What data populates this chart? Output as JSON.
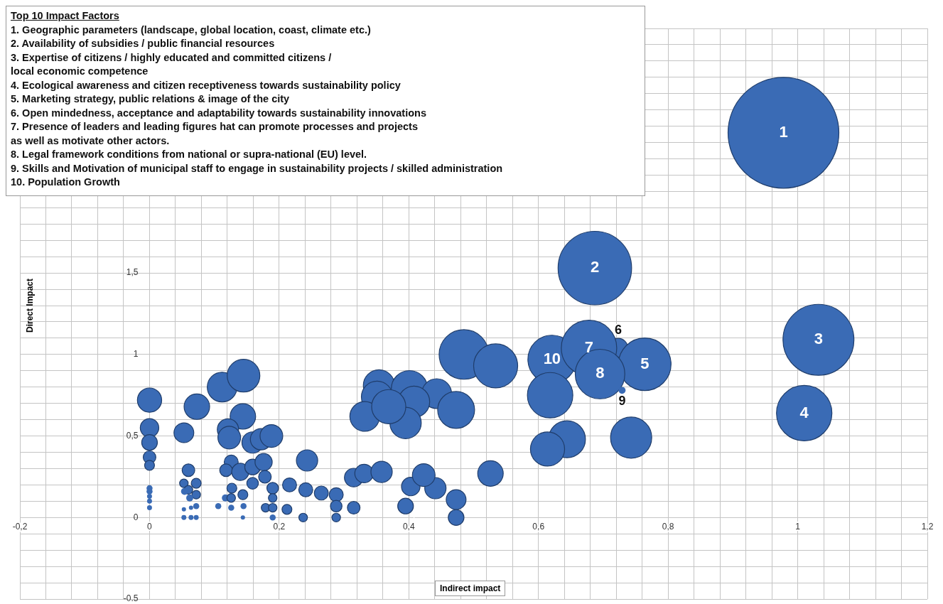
{
  "chart_data": {
    "type": "bubble",
    "title": "Top 10 Impact Factors",
    "xlabel": "Indirect impact",
    "ylabel": "Direct Impact",
    "color": "#3a6bb5",
    "grid": true,
    "xlim": [
      -0.2,
      1.2
    ],
    "ylim": [
      -0.5,
      3
    ],
    "xticks": [
      {
        "value": -0.2,
        "label": "-0,2"
      },
      {
        "value": -0.16,
        "label": null
      },
      {
        "value": -0.12,
        "label": null
      },
      {
        "value": -0.08,
        "label": null
      },
      {
        "value": -0.04,
        "label": null
      },
      0,
      {
        "value": 0.04,
        "label": null
      },
      {
        "value": 0.08,
        "label": null
      },
      {
        "value": 0.12,
        "label": null
      },
      {
        "value": 0.16,
        "label": null
      },
      {
        "value": 0.2,
        "label": "0,2"
      },
      {
        "value": 0.24,
        "label": null
      },
      {
        "value": 0.28,
        "label": null
      },
      {
        "value": 0.32,
        "label": null
      },
      {
        "value": 0.36,
        "label": null
      },
      {
        "value": 0.4,
        "label": "0,4"
      },
      {
        "value": 0.44,
        "label": null
      },
      {
        "value": 0.48,
        "label": null
      },
      {
        "value": 0.52,
        "label": null
      },
      {
        "value": 0.56,
        "label": null
      },
      {
        "value": 0.6,
        "label": "0,6"
      },
      {
        "value": 0.64,
        "label": null
      },
      {
        "value": 0.68,
        "label": null
      },
      {
        "value": 0.72,
        "label": null
      },
      {
        "value": 0.76,
        "label": null
      },
      {
        "value": 0.8,
        "label": "0,8"
      },
      {
        "value": 0.84,
        "label": null
      },
      {
        "value": 0.88,
        "label": null
      },
      {
        "value": 0.92,
        "label": null
      },
      {
        "value": 0.96,
        "label": null
      },
      1,
      {
        "value": 1.04,
        "label": null
      },
      {
        "value": 1.08,
        "label": null
      },
      {
        "value": 1.12,
        "label": null
      },
      {
        "value": 1.16,
        "label": null
      },
      {
        "value": 1.2,
        "label": "1,2"
      }
    ],
    "yticks": [
      {
        "value": -0.5,
        "label": "-0.5"
      },
      {
        "value": -0.4,
        "label": null
      },
      {
        "value": -0.3,
        "label": null
      },
      {
        "value": -0.2,
        "label": null
      },
      {
        "value": -0.1,
        "label": null
      },
      0,
      {
        "value": 0.1,
        "label": null
      },
      {
        "value": 0.2,
        "label": null
      },
      {
        "value": 0.3,
        "label": null
      },
      {
        "value": 0.4,
        "label": null
      },
      {
        "value": 0.5,
        "label": "0,5"
      },
      {
        "value": 0.6,
        "label": null
      },
      {
        "value": 0.7,
        "label": null
      },
      {
        "value": 0.8,
        "label": null
      },
      {
        "value": 0.9,
        "label": null
      },
      1,
      {
        "value": 1.1,
        "label": null
      },
      {
        "value": 1.2,
        "label": null
      },
      {
        "value": 1.3,
        "label": null
      },
      {
        "value": 1.4,
        "label": null
      },
      {
        "value": 1.5,
        "label": "1,5"
      },
      {
        "value": 1.6,
        "label": null
      },
      {
        "value": 1.7,
        "label": null
      },
      {
        "value": 1.8,
        "label": null
      },
      {
        "value": 1.9,
        "label": null
      },
      {
        "value": 2,
        "label": null
      },
      {
        "value": 2.1,
        "label": null
      },
      {
        "value": 2.2,
        "label": null
      },
      {
        "value": 2.3,
        "label": null
      },
      {
        "value": 2.4,
        "label": null
      },
      {
        "value": 2.5,
        "label": null
      },
      {
        "value": 2.6,
        "label": null
      },
      {
        "value": 2.7,
        "label": null
      },
      {
        "value": 2.8,
        "label": null
      },
      {
        "value": 2.9,
        "label": null
      },
      {
        "value": 3,
        "label": null
      }
    ],
    "x": [
      0.723,
      0.978,
      0.687,
      1.032,
      1.01,
      0.621,
      0.678,
      0.764,
      0.695,
      0.618,
      0.644,
      0.614,
      0.743,
      0.485,
      0.534,
      0.354,
      0.351,
      0.332,
      0.401,
      0.443,
      0.408,
      0.395,
      0.369,
      0.473,
      0.243,
      0.315,
      0.331,
      0.358,
      0.403,
      0.441,
      0.423,
      0.526,
      0.473,
      0.473,
      0.395,
      0.265,
      0.288,
      0.288,
      0.288,
      0.315,
      0,
      0,
      0,
      0,
      0,
      0,
      0,
      0,
      0,
      0,
      0.053,
      0.073,
      0.112,
      0.145,
      0.144,
      0.121,
      0.123,
      0.159,
      0.172,
      0.188,
      0.06,
      0.053,
      0.072,
      0.06,
      0.054,
      0.072,
      0.062,
      0.053,
      0.064,
      0.072,
      0.053,
      0.064,
      0.072,
      0.126,
      0.118,
      0.14,
      0.159,
      0.176,
      0.159,
      0.178,
      0.19,
      0.19,
      0.179,
      0.19,
      0.19,
      0.127,
      0.117,
      0.126,
      0.144,
      0.106,
      0.126,
      0.145,
      0.144,
      0.216,
      0.241,
      0.212,
      0.237,
      0.729
    ],
    "values": [
      1.04,
      2.36,
      1.53,
      1.09,
      0.64,
      0.97,
      1.04,
      0.94,
      0.88,
      0.75,
      0.48,
      0.42,
      0.49,
      1.0,
      0.93,
      0.81,
      0.74,
      0.62,
      0.79,
      0.76,
      0.71,
      0.58,
      0.68,
      0.66,
      0.35,
      0.245,
      0.27,
      0.28,
      0.19,
      0.18,
      0.26,
      0.27,
      0.11,
      0.0,
      0.07,
      0.15,
      0.14,
      0.07,
      0.0,
      0.06,
      0.72,
      0.55,
      0.46,
      0.37,
      0.32,
      0.18,
      0.16,
      0.13,
      0.1,
      0.06,
      0.52,
      0.68,
      0.8,
      0.87,
      0.62,
      0.54,
      0.49,
      0.46,
      0.48,
      0.5,
      0.29,
      0.21,
      0.21,
      0.17,
      0.16,
      0.14,
      0.12,
      0.05,
      0.06,
      0.07,
      0,
      0,
      0,
      0.34,
      0.29,
      0.28,
      0.31,
      0.34,
      0.21,
      0.25,
      0.18,
      0.12,
      0.06,
      0.06,
      0,
      0.18,
      0.12,
      0.12,
      0.14,
      0.07,
      0.06,
      0.07,
      0,
      0.2,
      0.17,
      0.05,
      0,
      0.78
    ],
    "sizes": [
      0.03,
      1,
      0.44,
      0.41,
      0.25,
      0.19,
      0.25,
      0.225,
      0.2,
      0.168,
      0.111,
      0.095,
      0.138,
      0.2,
      0.158,
      0.08,
      0.08,
      0.072,
      0.107,
      0.072,
      0.08,
      0.08,
      0.095,
      0.111,
      0.037,
      0.028,
      0.028,
      0.037,
      0.028,
      0.037,
      0.042,
      0.053,
      0.032,
      0.02,
      0.02,
      0.016,
      0.016,
      0.011,
      0.006,
      0.013,
      0.048,
      0.028,
      0.02,
      0.013,
      0.008,
      0.003,
      0.003,
      0.002,
      0.002,
      0.002,
      0.032,
      0.053,
      0.072,
      0.087,
      0.053,
      0.037,
      0.042,
      0.037,
      0.037,
      0.042,
      0.013,
      0.006,
      0.008,
      0.006,
      0.004,
      0.006,
      0.004,
      0.0015,
      0.0015,
      0.003,
      0.002,
      0.002,
      0.002,
      0.016,
      0.013,
      0.024,
      0.02,
      0.024,
      0.011,
      0.013,
      0.011,
      0.006,
      0.006,
      0.006,
      0.003,
      0.008,
      0.004,
      0.006,
      0.008,
      0.003,
      0.003,
      0.003,
      0.0015,
      0.016,
      0.016,
      0.008,
      0.006,
      0.004
    ],
    "annotations": [
      "1. Geographic parameters (landscape, global location, coast, climate etc.)",
      "2. Availability of subsidies / public financial resources",
      "3. Expertise of citizens / highly educated and committed citizens /\nlocal economic competence",
      "4. Ecological awareness and citizen receptiveness towards sustainability policy",
      "5. Marketing strategy, public relations & image of the city",
      "6. Open mindedness, acceptance and adaptability towards sustainability innovations",
      "7. Presence of leaders and leading figures hat can promote processes and projects\nas well as motivate other actors.",
      "8. Legal framework conditions from national or supra-national (EU) level.",
      "9. Skills and Motivation of municipal staff to engage in sustainability projects / skilled administration",
      "10. Population Growth",
      {
        "text": "1",
        "x": 0.978,
        "y": 2.36
      },
      {
        "text": "2",
        "x": 0.687,
        "y": 1.53
      },
      {
        "text": "3",
        "x": 1.032,
        "y": 1.09
      },
      {
        "text": "4",
        "x": 1.01,
        "y": 0.64
      },
      {
        "text": "5",
        "x": 0.764,
        "y": 0.94
      },
      {
        "text": "6",
        "x": 0.723,
        "y": 1.04
      },
      {
        "text": "7",
        "x": 0.678,
        "y": 1.04
      },
      {
        "text": "8",
        "x": 0.695,
        "y": 0.88
      },
      {
        "text": "9",
        "x": 0.729,
        "y": 0.78
      },
      {
        "text": "10",
        "x": 0.621,
        "y": 0.97
      }
    ]
  }
}
